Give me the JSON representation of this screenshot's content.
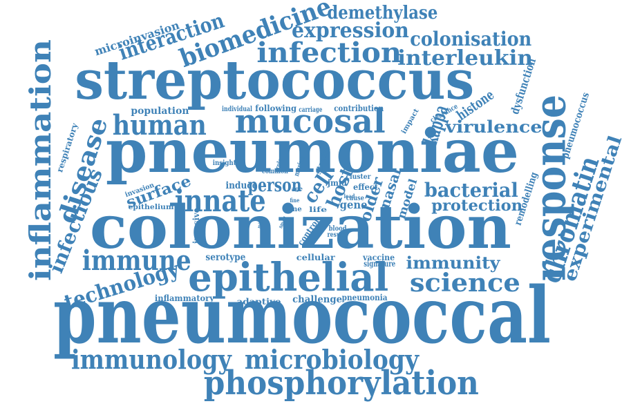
{
  "colors": {
    "word": "#3f82b7",
    "background": "#ffffff"
  },
  "words": [
    {
      "text": "pneumococcal"
    },
    {
      "text": "colonization"
    },
    {
      "text": "pneumoniae"
    },
    {
      "text": "streptococcus"
    },
    {
      "text": "response"
    },
    {
      "text": "epithelial"
    },
    {
      "text": "phosphorylation"
    },
    {
      "text": "inflammation"
    },
    {
      "text": "mucosal"
    },
    {
      "text": "microbiology"
    },
    {
      "text": "immunology"
    },
    {
      "text": "infection"
    },
    {
      "text": "biomedicine"
    },
    {
      "text": "chromatin"
    },
    {
      "text": "innate"
    },
    {
      "text": "immune"
    },
    {
      "text": "science"
    },
    {
      "text": "human"
    },
    {
      "text": "disease"
    },
    {
      "text": "experimental"
    },
    {
      "text": "technology"
    },
    {
      "text": "interaction"
    },
    {
      "text": "expression"
    },
    {
      "text": "interleukin"
    },
    {
      "text": "colonisation"
    },
    {
      "text": "demethylase"
    },
    {
      "text": "infectious"
    },
    {
      "text": "bacterial"
    },
    {
      "text": "immunity"
    },
    {
      "text": "virulence"
    },
    {
      "text": "kappa"
    },
    {
      "text": "protection"
    },
    {
      "text": "surface"
    },
    {
      "text": "microinvasion"
    },
    {
      "text": "histone"
    },
    {
      "text": "dysfunction"
    },
    {
      "text": "pneumococcus"
    },
    {
      "text": "respiratory"
    },
    {
      "text": "person"
    },
    {
      "text": "host"
    },
    {
      "text": "cell"
    },
    {
      "text": "older"
    },
    {
      "text": "nasal"
    },
    {
      "text": "remodelling"
    },
    {
      "text": "population"
    },
    {
      "text": "following"
    },
    {
      "text": "individual"
    },
    {
      "text": "contribution"
    },
    {
      "text": "carriage"
    },
    {
      "text": "clearance"
    },
    {
      "text": "impact"
    },
    {
      "text": "insight"
    },
    {
      "text": "induce"
    },
    {
      "text": "jmjd"
    },
    {
      "text": "gene"
    },
    {
      "text": "model"
    },
    {
      "text": "invasion"
    },
    {
      "text": "epithelium"
    },
    {
      "text": "invasive"
    },
    {
      "text": "serotype"
    },
    {
      "text": "cellular"
    },
    {
      "text": "vaccine"
    },
    {
      "text": "signature"
    },
    {
      "text": "inflammatory"
    },
    {
      "text": "adaptive"
    },
    {
      "text": "challenge"
    },
    {
      "text": "pneumonia"
    },
    {
      "text": "control"
    },
    {
      "text": "strain"
    },
    {
      "text": "common"
    },
    {
      "text": "cluster"
    },
    {
      "text": "effect"
    },
    {
      "text": "life"
    },
    {
      "text": "tune"
    },
    {
      "text": "blood"
    },
    {
      "text": "result"
    },
    {
      "text": "murine"
    },
    {
      "text": "cause"
    },
    {
      "text": "micro"
    },
    {
      "text": "small"
    },
    {
      "text": "fine"
    },
    {
      "text": "age"
    },
    {
      "text": "lead"
    },
    {
      "text": "role"
    }
  ]
}
